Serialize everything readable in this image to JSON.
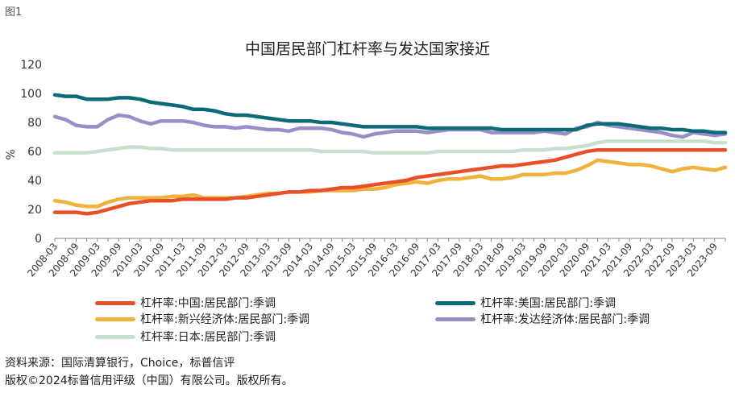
{
  "figure_label": "图1",
  "title": "中国居民部门杠杆率与发达国家接近",
  "source": "资料来源：国际清算银行，Choice，标普信评",
  "copyright": "版权©2024标普信用评级（中国）有限公司。版权所有。",
  "chart_data": {
    "type": "line",
    "title": "中国居民部门杠杆率与发达国家接近",
    "ylabel": "%",
    "ylim": [
      0,
      120
    ],
    "yticks": [
      0,
      20,
      40,
      60,
      80,
      100,
      120
    ],
    "grid": false,
    "legend_position": "bottom",
    "x_tick_labels": [
      "2008-03",
      "2008-09",
      "2009-03",
      "2009-09",
      "2010-03",
      "2010-09",
      "2011-03",
      "2011-09",
      "2012-03",
      "2012-09",
      "2013-03",
      "2013-09",
      "2014-03",
      "2014-09",
      "2015-03",
      "2015-09",
      "2016-03",
      "2016-09",
      "2017-03",
      "2017-09",
      "2018-03",
      "2018-09",
      "2019-03",
      "2019-09",
      "2020-03",
      "2020-09",
      "2021-03",
      "2021-09",
      "2022-03",
      "2022-09",
      "2023-03",
      "2023-09"
    ],
    "x": [
      "2008-03",
      "2008-06",
      "2008-09",
      "2008-12",
      "2009-03",
      "2009-06",
      "2009-09",
      "2009-12",
      "2010-03",
      "2010-06",
      "2010-09",
      "2010-12",
      "2011-03",
      "2011-06",
      "2011-09",
      "2011-12",
      "2012-03",
      "2012-06",
      "2012-09",
      "2012-12",
      "2013-03",
      "2013-06",
      "2013-09",
      "2013-12",
      "2014-03",
      "2014-06",
      "2014-09",
      "2014-12",
      "2015-03",
      "2015-06",
      "2015-09",
      "2015-12",
      "2016-03",
      "2016-06",
      "2016-09",
      "2016-12",
      "2017-03",
      "2017-06",
      "2017-09",
      "2017-12",
      "2018-03",
      "2018-06",
      "2018-09",
      "2018-12",
      "2019-03",
      "2019-06",
      "2019-09",
      "2019-12",
      "2020-03",
      "2020-06",
      "2020-09",
      "2020-12",
      "2021-03",
      "2021-06",
      "2021-09",
      "2021-12",
      "2022-03",
      "2022-06",
      "2022-09",
      "2022-12",
      "2023-03",
      "2023-06",
      "2023-09",
      "2023-12"
    ],
    "series": [
      {
        "name": "杠杆率:中国:居民部门:季调",
        "color": "#e8502a",
        "values": [
          18,
          18,
          18,
          17,
          18,
          20,
          22,
          24,
          25,
          26,
          26,
          26,
          27,
          27,
          27,
          27,
          27,
          28,
          28,
          29,
          30,
          31,
          32,
          32,
          33,
          33,
          34,
          35,
          35,
          36,
          37,
          38,
          39,
          40,
          42,
          43,
          44,
          45,
          46,
          47,
          48,
          49,
          50,
          50,
          51,
          52,
          53,
          54,
          56,
          58,
          60,
          61,
          61,
          61,
          61,
          61,
          61,
          61,
          61,
          61,
          61,
          61,
          61,
          61
        ]
      },
      {
        "name": "杠杆率:美国:居民部门:季调",
        "color": "#0d6b78",
        "values": [
          99,
          98,
          98,
          96,
          96,
          96,
          97,
          97,
          96,
          94,
          93,
          92,
          91,
          89,
          89,
          88,
          86,
          85,
          85,
          84,
          83,
          82,
          81,
          81,
          81,
          80,
          80,
          79,
          78,
          77,
          77,
          77,
          77,
          77,
          77,
          76,
          76,
          76,
          76,
          76,
          76,
          76,
          75,
          75,
          75,
          75,
          75,
          75,
          75,
          75,
          78,
          79,
          79,
          79,
          78,
          77,
          76,
          76,
          75,
          75,
          74,
          74,
          73,
          73
        ]
      },
      {
        "name": "杠杆率:新兴经济体:居民部门:季调",
        "color": "#f0b23c",
        "values": [
          26,
          25,
          23,
          22,
          22,
          25,
          27,
          28,
          28,
          28,
          28,
          29,
          29,
          30,
          28,
          28,
          28,
          28,
          29,
          30,
          31,
          31,
          32,
          32,
          32,
          33,
          33,
          33,
          33,
          34,
          34,
          35,
          37,
          38,
          39,
          38,
          40,
          41,
          41,
          42,
          43,
          41,
          41,
          42,
          44,
          44,
          44,
          45,
          45,
          47,
          50,
          54,
          53,
          52,
          51,
          51,
          50,
          48,
          46,
          48,
          49,
          48,
          47,
          49
        ]
      },
      {
        "name": "杠杆率:发达经济体:居民部门:季调",
        "color": "#9a8ec8",
        "values": [
          84,
          82,
          78,
          77,
          77,
          82,
          85,
          84,
          81,
          79,
          81,
          81,
          81,
          80,
          78,
          77,
          77,
          76,
          77,
          76,
          75,
          75,
          74,
          76,
          76,
          76,
          75,
          73,
          72,
          70,
          72,
          73,
          74,
          74,
          74,
          73,
          74,
          75,
          75,
          75,
          75,
          73,
          73,
          73,
          73,
          73,
          74,
          73,
          72,
          76,
          77,
          80,
          78,
          77,
          76,
          75,
          74,
          73,
          71,
          70,
          73,
          72,
          71,
          72
        ]
      },
      {
        "name": "杠杆率:日本:居民部门:季调",
        "color": "#c5e0cf",
        "values": [
          59,
          59,
          59,
          59,
          60,
          61,
          62,
          63,
          63,
          62,
          62,
          61,
          61,
          61,
          61,
          61,
          61,
          61,
          61,
          61,
          61,
          61,
          61,
          61,
          61,
          60,
          60,
          60,
          60,
          60,
          59,
          59,
          59,
          59,
          59,
          59,
          60,
          60,
          60,
          60,
          60,
          60,
          60,
          60,
          61,
          61,
          61,
          62,
          62,
          63,
          64,
          66,
          67,
          67,
          67,
          67,
          67,
          67,
          67,
          67,
          67,
          67,
          66,
          66
        ]
      }
    ]
  }
}
